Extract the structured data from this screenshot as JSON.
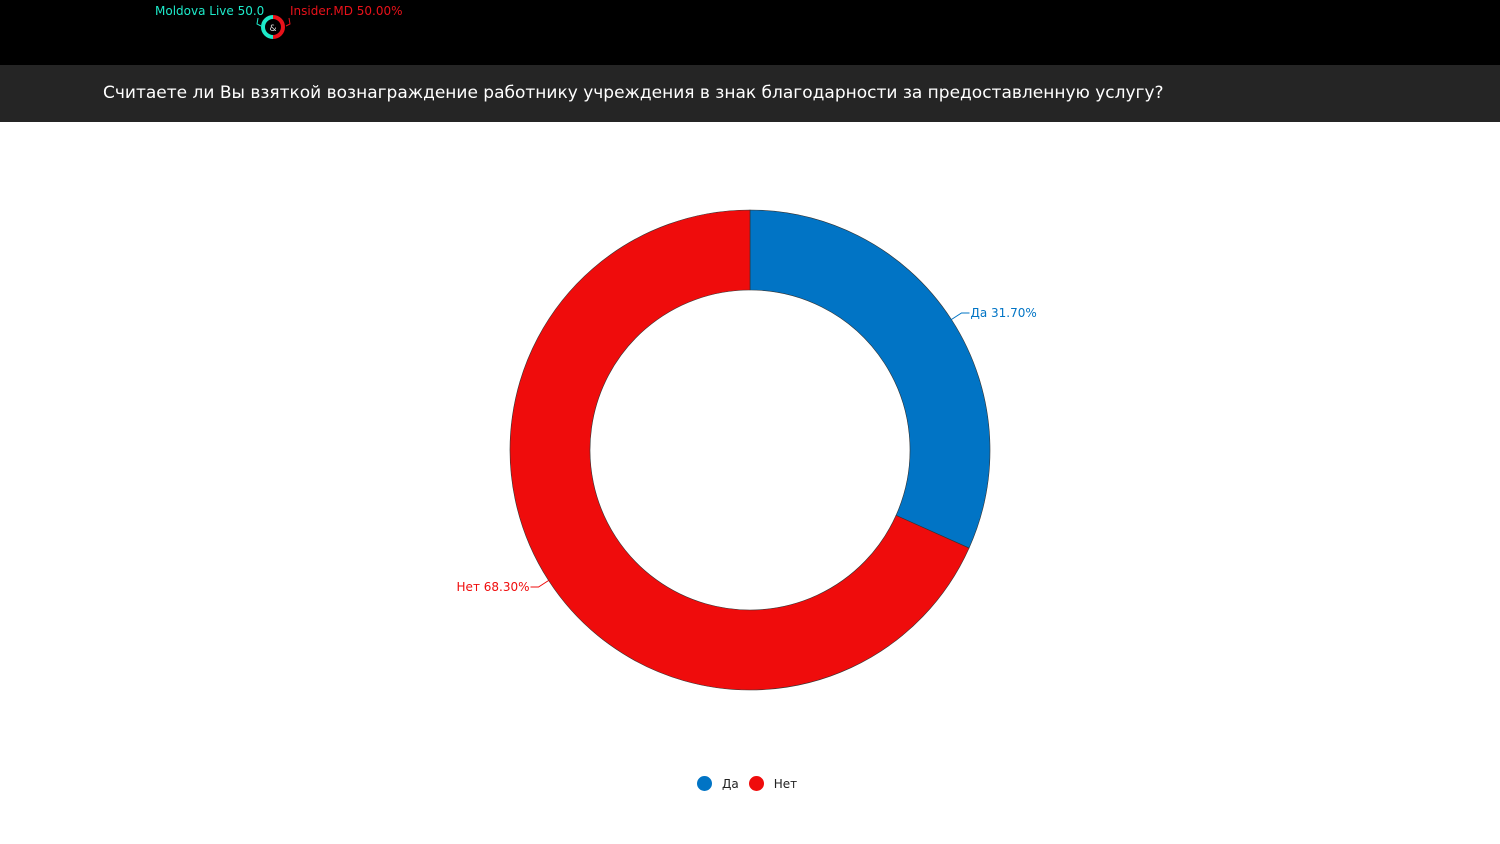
{
  "header": {
    "logo": {
      "left_label": "Moldova Live 50.0",
      "right_label": "Insider.MD 50.00%",
      "center_glyph": "&",
      "left_color": "#1de9c9",
      "right_color": "#e8121a"
    }
  },
  "question": {
    "title": "Считаете ли Вы взяткой вознаграждение работнику учреждения в знак благодарности за предоставленную услугу?"
  },
  "chart_data": {
    "type": "pie",
    "donut": true,
    "categories": [
      "Да",
      "Нет"
    ],
    "values": [
      31.7,
      68.3
    ],
    "colors": [
      "#0174c5",
      "#ef0c0c"
    ],
    "data_labels": [
      "Да 31.70%",
      "Нет 68.30%"
    ],
    "legend": "bottom"
  }
}
